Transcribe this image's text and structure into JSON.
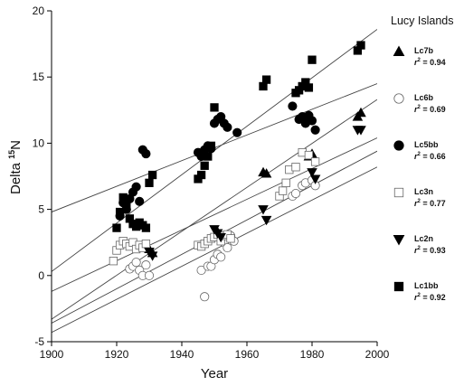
{
  "chart_data": {
    "type": "scatter",
    "title": "",
    "xlabel": "Year",
    "ylabel": "Delta 15N",
    "ylabel_main": "Delta ",
    "ylabel_sup": "15",
    "ylabel_tail": "N",
    "xlim": [
      1900,
      2000
    ],
    "ylim": [
      -5,
      20
    ],
    "xticks": [
      1900,
      1920,
      1940,
      1960,
      1980,
      2000
    ],
    "yticks": [
      -5,
      0,
      5,
      10,
      15,
      20
    ],
    "grid": false,
    "legend": {
      "title": "Lucy Islands",
      "placement": "right"
    },
    "series": [
      {
        "name": "Lc7b",
        "r2_label": "= 0.94",
        "marker": "triangle-up",
        "fill": "#000000",
        "points": [
          [
            1930,
            2.0
          ],
          [
            1931,
            1.7
          ],
          [
            1951,
            3.3
          ],
          [
            1965,
            7.8
          ],
          [
            1966,
            7.7
          ],
          [
            1979,
            9.0
          ],
          [
            1980,
            9.2
          ],
          [
            1994,
            12.0
          ],
          [
            1995,
            12.3
          ]
        ],
        "fit": [
          [
            1900,
            -3.3
          ],
          [
            2000,
            13.3
          ]
        ]
      },
      {
        "name": "Lc6b",
        "r2_label": "= 0.69",
        "marker": "circle",
        "fill": "#ffffff",
        "points": [
          [
            1924,
            0.5
          ],
          [
            1925,
            0.7
          ],
          [
            1926,
            1.0
          ],
          [
            1927,
            0.4
          ],
          [
            1928,
            0.0
          ],
          [
            1929,
            0.8
          ],
          [
            1930,
            0.0
          ],
          [
            1946,
            0.4
          ],
          [
            1947,
            -1.6
          ],
          [
            1948,
            0.7
          ],
          [
            1949,
            0.7
          ],
          [
            1950,
            1.2
          ],
          [
            1951,
            1.6
          ],
          [
            1952,
            1.4
          ],
          [
            1953,
            2.5
          ],
          [
            1954,
            2.1
          ],
          [
            1955,
            3.0
          ],
          [
            1956,
            2.6
          ],
          [
            1974,
            6.0
          ],
          [
            1975,
            6.2
          ],
          [
            1977,
            6.8
          ],
          [
            1978,
            7.0
          ],
          [
            1980,
            7.2
          ],
          [
            1981,
            6.8
          ]
        ],
        "fit": [
          [
            1900,
            -4.3
          ],
          [
            2000,
            8.2
          ]
        ]
      },
      {
        "name": "Lc5bb",
        "r2_label": "= 0.66",
        "marker": "circle",
        "fill": "#000000",
        "points": [
          [
            1921,
            4.5
          ],
          [
            1922,
            5.5
          ],
          [
            1923,
            5.0
          ],
          [
            1924,
            5.8
          ],
          [
            1925,
            6.3
          ],
          [
            1926,
            6.7
          ],
          [
            1927,
            5.6
          ],
          [
            1928,
            9.5
          ],
          [
            1929,
            9.2
          ],
          [
            1945,
            9.3
          ],
          [
            1946,
            9.0
          ],
          [
            1947,
            9.5
          ],
          [
            1948,
            9.8
          ],
          [
            1949,
            9.6
          ],
          [
            1950,
            11.5
          ],
          [
            1951,
            11.8
          ],
          [
            1952,
            12.0
          ],
          [
            1953,
            11.5
          ],
          [
            1954,
            11.2
          ],
          [
            1957,
            10.8
          ],
          [
            1974,
            12.8
          ],
          [
            1976,
            11.8
          ],
          [
            1977,
            12.0
          ],
          [
            1978,
            11.5
          ],
          [
            1979,
            12.1
          ],
          [
            1980,
            11.7
          ],
          [
            1981,
            11.0
          ]
        ],
        "fit": [
          [
            1900,
            4.8
          ],
          [
            2000,
            14.5
          ]
        ]
      },
      {
        "name": "Lc3n",
        "r2_label": "= 0.77",
        "marker": "square",
        "fill": "#ffffff",
        "points": [
          [
            1919,
            1.1
          ],
          [
            1920,
            1.9
          ],
          [
            1921,
            2.3
          ],
          [
            1922,
            2.6
          ],
          [
            1923,
            2.4
          ],
          [
            1924,
            2.2
          ],
          [
            1925,
            2.5
          ],
          [
            1926,
            2.0
          ],
          [
            1927,
            2.3
          ],
          [
            1928,
            2.1
          ],
          [
            1929,
            2.4
          ],
          [
            1945,
            2.3
          ],
          [
            1946,
            2.2
          ],
          [
            1947,
            2.4
          ],
          [
            1948,
            2.6
          ],
          [
            1949,
            2.8
          ],
          [
            1950,
            2.9
          ],
          [
            1951,
            3.1
          ],
          [
            1952,
            2.6
          ],
          [
            1953,
            3.0
          ],
          [
            1954,
            3.1
          ],
          [
            1955,
            2.8
          ],
          [
            1970,
            6.0
          ],
          [
            1971,
            6.4
          ],
          [
            1972,
            7.0
          ],
          [
            1973,
            8.0
          ],
          [
            1975,
            8.2
          ],
          [
            1977,
            9.3
          ],
          [
            1979,
            9.1
          ],
          [
            1981,
            8.6
          ]
        ],
        "fit": [
          [
            1900,
            -1.2
          ],
          [
            2000,
            10.4
          ]
        ]
      },
      {
        "name": "Lc2n",
        "r2_label": "= 0.93",
        "marker": "triangle-down",
        "fill": "#000000",
        "points": [
          [
            1930,
            1.8
          ],
          [
            1931,
            1.5
          ],
          [
            1950,
            3.5
          ],
          [
            1951,
            3.2
          ],
          [
            1952,
            2.9
          ],
          [
            1965,
            5.0
          ],
          [
            1966,
            4.2
          ],
          [
            1980,
            7.8
          ],
          [
            1981,
            7.3
          ],
          [
            1994,
            11.0
          ],
          [
            1995,
            11.0
          ]
        ],
        "fit": [
          [
            1900,
            -3.6
          ],
          [
            2000,
            9.4
          ]
        ]
      },
      {
        "name": "Lc1bb",
        "r2_label": "= 0.92",
        "marker": "square",
        "fill": "#000000",
        "points": [
          [
            1920,
            3.6
          ],
          [
            1921,
            4.8
          ],
          [
            1922,
            5.9
          ],
          [
            1923,
            5.2
          ],
          [
            1924,
            4.3
          ],
          [
            1925,
            3.9
          ],
          [
            1926,
            3.7
          ],
          [
            1927,
            4.0
          ],
          [
            1928,
            3.8
          ],
          [
            1929,
            3.6
          ],
          [
            1930,
            7.0
          ],
          [
            1931,
            7.6
          ],
          [
            1945,
            7.3
          ],
          [
            1946,
            7.6
          ],
          [
            1947,
            8.3
          ],
          [
            1948,
            9.0
          ],
          [
            1949,
            9.8
          ],
          [
            1950,
            12.7
          ],
          [
            1965,
            14.3
          ],
          [
            1966,
            14.8
          ],
          [
            1975,
            13.8
          ],
          [
            1976,
            14.0
          ],
          [
            1977,
            14.3
          ],
          [
            1978,
            14.6
          ],
          [
            1979,
            14.2
          ],
          [
            1980,
            16.3
          ],
          [
            1994,
            17.0
          ],
          [
            1995,
            17.4
          ]
        ],
        "fit": [
          [
            1900,
            0.3
          ],
          [
            2000,
            18.6
          ]
        ]
      }
    ]
  }
}
